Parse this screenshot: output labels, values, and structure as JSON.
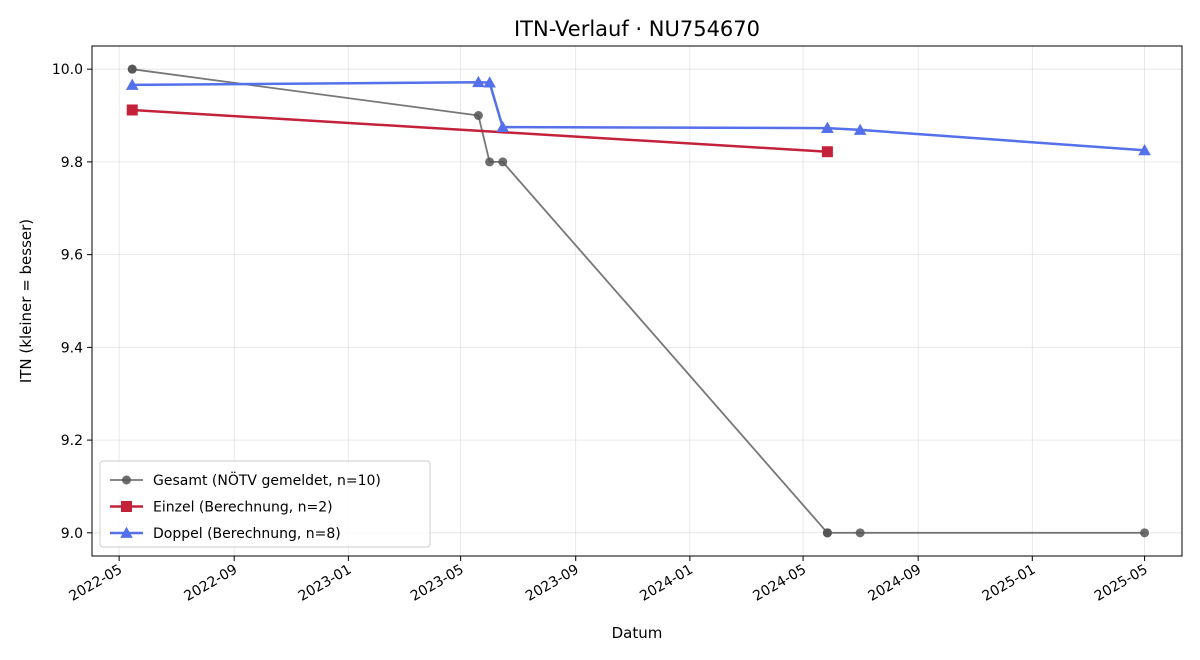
{
  "chart_data": {
    "type": "line",
    "title": "ITN-Verlauf · NU754670",
    "xlabel": "Datum",
    "ylabel": "ITN  (kleiner = besser)",
    "ylim": [
      8.95,
      10.05
    ],
    "xlim": [
      "2022-04-02",
      "2025-06-10"
    ],
    "x_ticks": [
      "2022-05",
      "2022-09",
      "2023-01",
      "2023-05",
      "2023-09",
      "2024-01",
      "2024-05",
      "2024-09",
      "2025-01",
      "2025-05"
    ],
    "y_ticks": [
      "9.0",
      "9.2",
      "9.4",
      "9.6",
      "9.8",
      "10.0"
    ],
    "grid": true,
    "legend_position": "lower-left",
    "series": [
      {
        "name": "Gesamt (NÖTV gemeldet, n=10)",
        "color": "#555555",
        "marker": "circle",
        "points": [
          {
            "x": "2022-05-15",
            "y": 10.0
          },
          {
            "x": "2022-05-15",
            "y": 10.0
          },
          {
            "x": "2023-05-20",
            "y": 9.9
          },
          {
            "x": "2023-06-01",
            "y": 9.8
          },
          {
            "x": "2023-06-15",
            "y": 9.8
          },
          {
            "x": "2024-05-27",
            "y": 9.0
          },
          {
            "x": "2024-05-27",
            "y": 9.0
          },
          {
            "x": "2024-05-27",
            "y": 9.0
          },
          {
            "x": "2024-07-01",
            "y": 9.0
          },
          {
            "x": "2025-05-01",
            "y": 9.0
          }
        ]
      },
      {
        "name": "Einzel (Berechnung, n=2)",
        "color": "#c4213b",
        "marker": "square",
        "points": [
          {
            "x": "2022-05-15",
            "y": 9.912
          },
          {
            "x": "2024-05-27",
            "y": 9.822
          }
        ]
      },
      {
        "name": "Doppel (Berechnung, n=8)",
        "color": "#5470ea",
        "marker": "triangle",
        "points": [
          {
            "x": "2022-05-15",
            "y": 9.966
          },
          {
            "x": "2023-05-20",
            "y": 9.972
          },
          {
            "x": "2023-06-01",
            "y": 9.971
          },
          {
            "x": "2023-06-15",
            "y": 9.875
          },
          {
            "x": "2024-05-27",
            "y": 9.873
          },
          {
            "x": "2024-05-27",
            "y": 9.873
          },
          {
            "x": "2024-07-01",
            "y": 9.869
          },
          {
            "x": "2025-05-01",
            "y": 9.825
          }
        ]
      }
    ]
  }
}
